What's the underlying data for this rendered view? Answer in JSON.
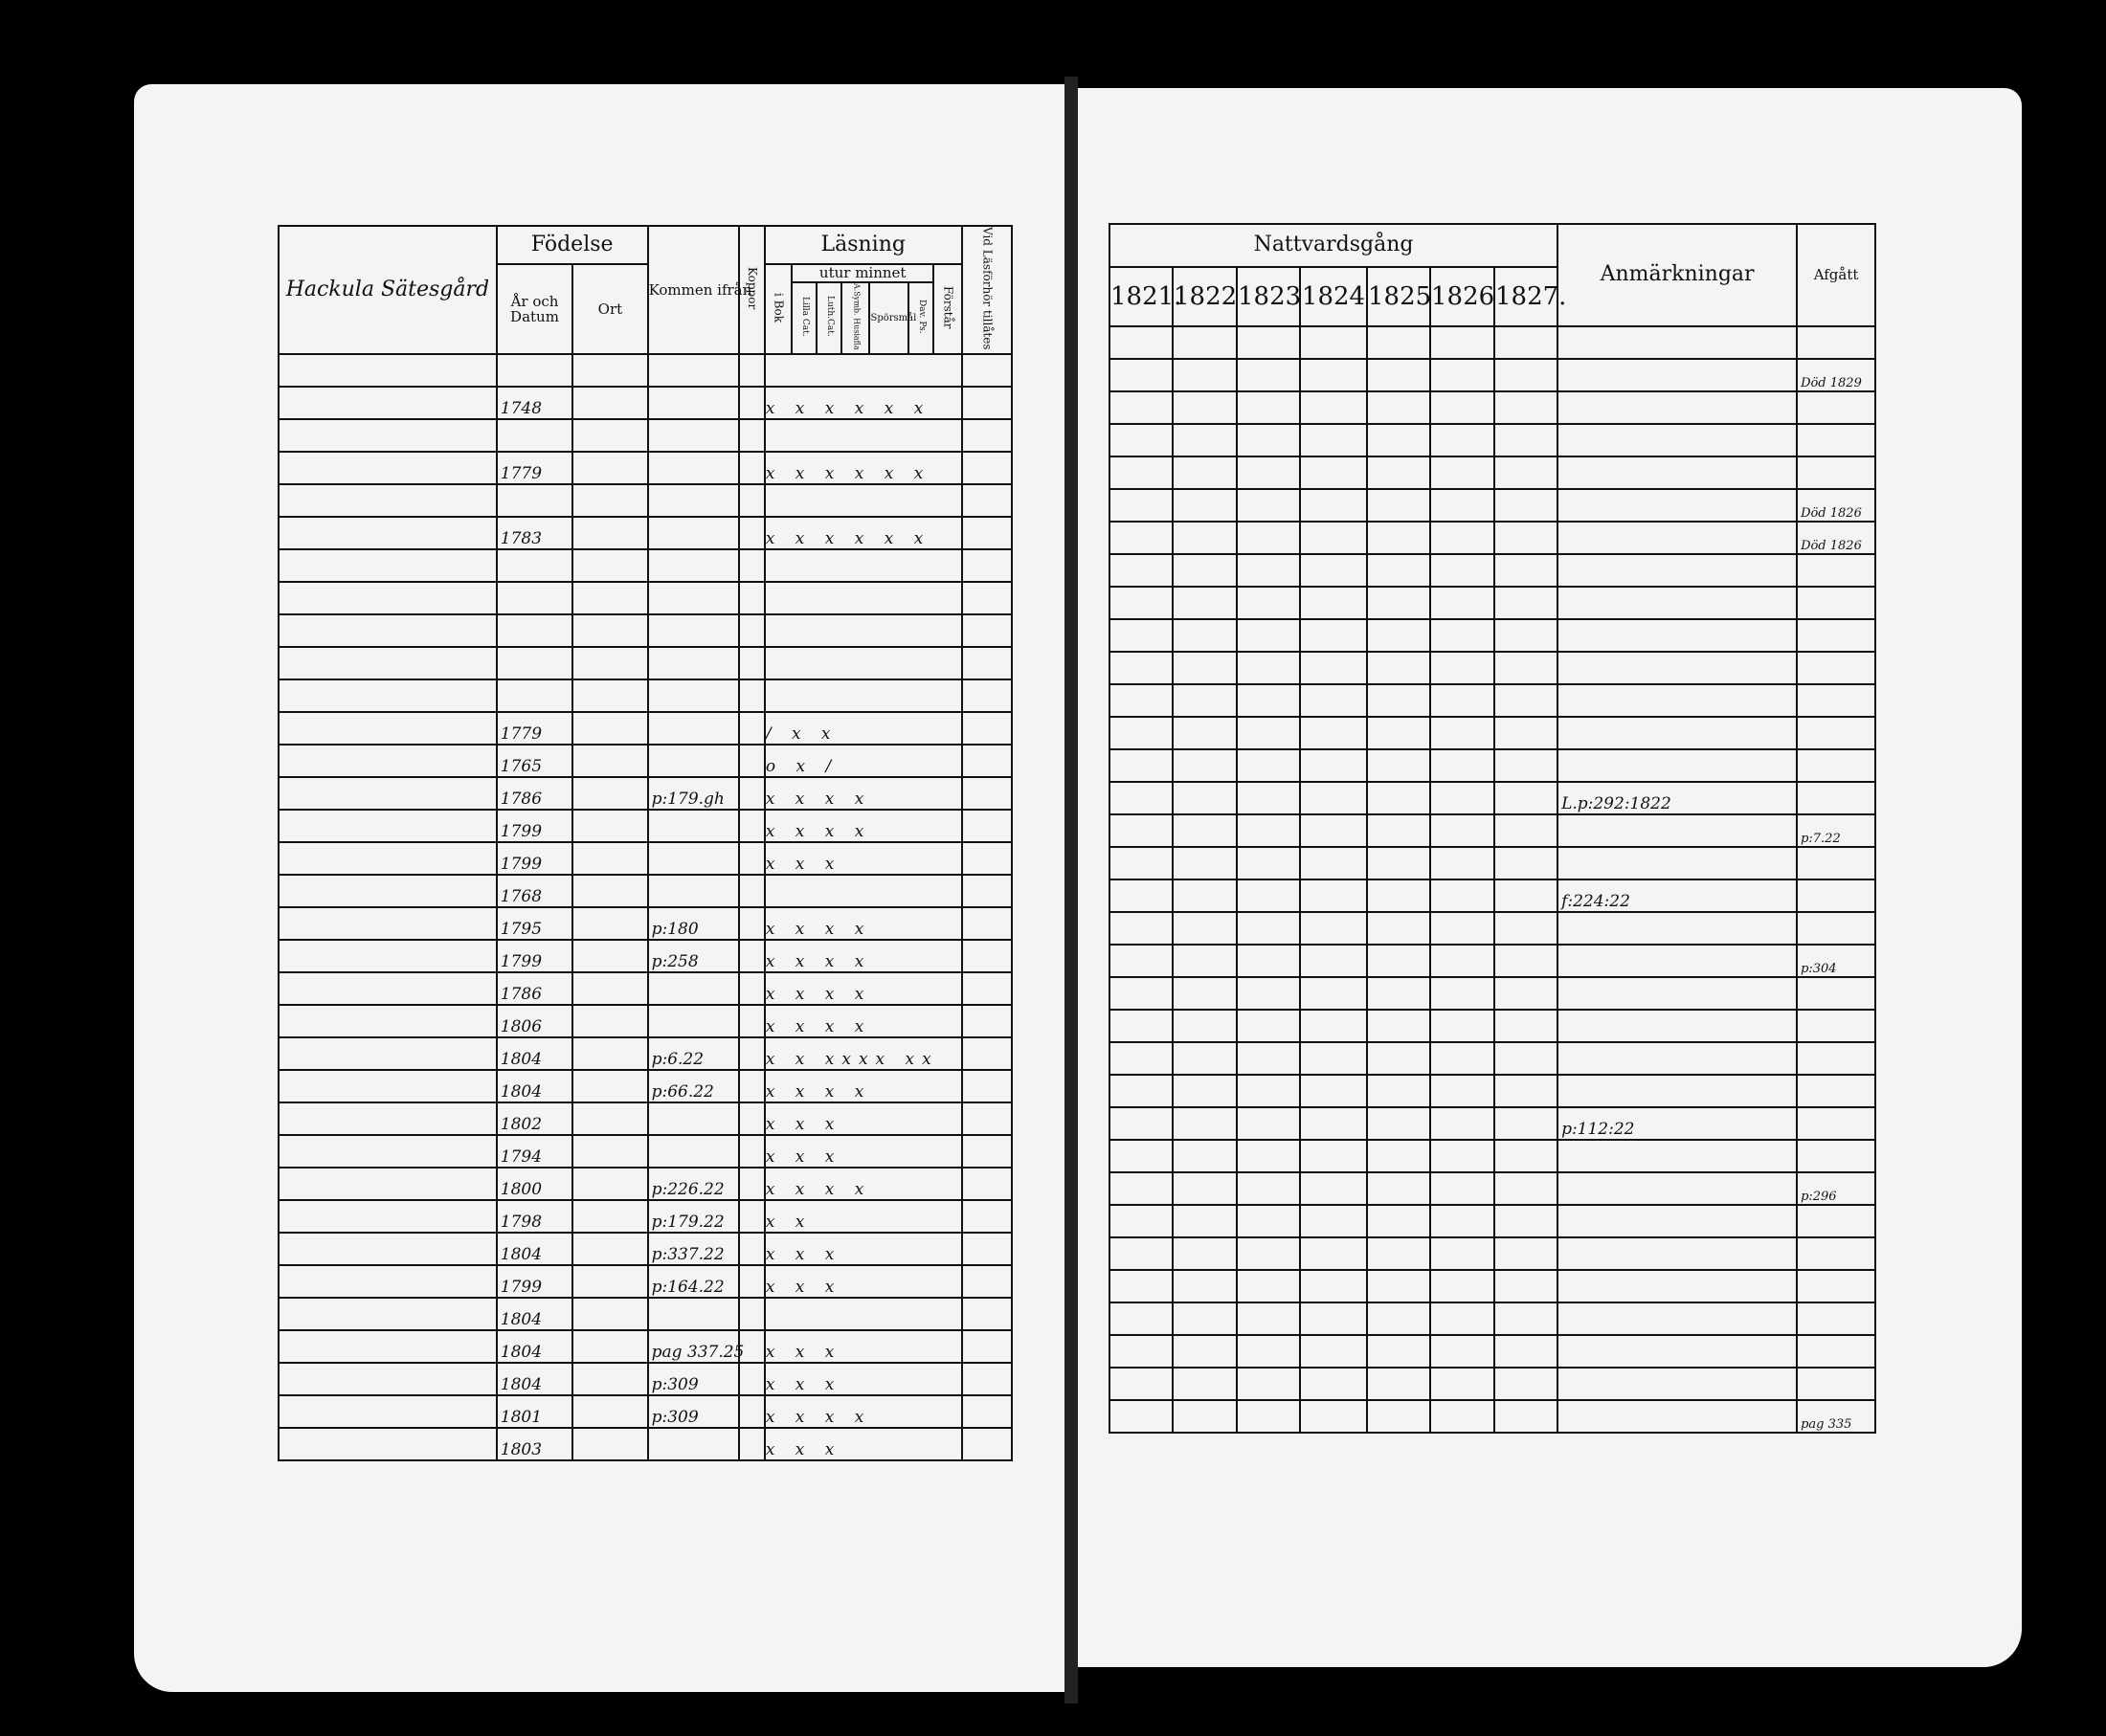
{
  "left_page": {
    "farm_name": "Hackula Sätesgård",
    "headers": {
      "birth": "Födelse",
      "birth_date": "År och Datum",
      "birth_place": "Ort",
      "came_from": "Kommen ifrån",
      "smallpox": "Koppor",
      "reading": "Läsning",
      "by_heart": "utur minnet",
      "in_book": "i Bok",
      "small_catechism": "Lilla Cat.",
      "luther_cat": "Luth.Cat.",
      "symbolic_books": "A.Symb. Husiafla",
      "questions": "Spörsmål",
      "davids_psalms": "Dav. Ps.",
      "understanding": "Förstår",
      "admitted": "Vid Läsförhör tillåtes"
    },
    "rows": [
      {
        "year": "",
        "from": "",
        "marks": ""
      },
      {
        "year": "1748",
        "from": "",
        "marks": "x x x x x x"
      },
      {
        "year": "",
        "from": "",
        "marks": ""
      },
      {
        "year": "1779",
        "from": "",
        "marks": "x x x x x x"
      },
      {
        "year": "",
        "from": "",
        "marks": ""
      },
      {
        "year": "1783",
        "from": "",
        "marks": "x x x x x x"
      },
      {
        "year": "",
        "from": "",
        "marks": ""
      },
      {
        "year": "",
        "from": "",
        "marks": ""
      },
      {
        "year": "",
        "from": "",
        "marks": ""
      },
      {
        "year": "",
        "from": "",
        "marks": ""
      },
      {
        "year": "",
        "from": "",
        "marks": ""
      },
      {
        "year": "1779",
        "from": "",
        "marks": "/ x x"
      },
      {
        "year": "1765",
        "from": "",
        "marks": "o x /"
      },
      {
        "year": "1786",
        "from": "p:179.gh",
        "marks": "x x x x"
      },
      {
        "year": "1799",
        "from": "",
        "marks": "x x x x"
      },
      {
        "year": "1799",
        "from": "",
        "marks": "x x x"
      },
      {
        "year": "1768",
        "from": "",
        "marks": ""
      },
      {
        "year": "1795",
        "from": "p:180",
        "marks": "x x x x"
      },
      {
        "year": "1799",
        "from": "p:258",
        "marks": "x x x x"
      },
      {
        "year": "1786",
        "from": "",
        "marks": "x x x x"
      },
      {
        "year": "1806",
        "from": "",
        "marks": "x x x x"
      },
      {
        "year": "1804",
        "from": "p:6.22",
        "marks": "x x xxxx xx"
      },
      {
        "year": "1804",
        "from": "p:66.22",
        "marks": "x x x x"
      },
      {
        "year": "1802",
        "from": "",
        "marks": "x x x"
      },
      {
        "year": "1794",
        "from": "",
        "marks": "x x x"
      },
      {
        "year": "1800",
        "from": "p:226.22",
        "marks": "x x x x"
      },
      {
        "year": "1798",
        "from": "p:179.22",
        "marks": "x x"
      },
      {
        "year": "1804",
        "from": "p:337.22",
        "marks": "x x x"
      },
      {
        "year": "1799",
        "from": "p:164.22",
        "marks": "x x x"
      },
      {
        "year": "1804",
        "from": "",
        "marks": ""
      },
      {
        "year": "1804",
        "from": "pag 337.25",
        "marks": "x x x"
      },
      {
        "year": "1804",
        "from": "p:309",
        "marks": "x x x"
      },
      {
        "year": "1801",
        "from": "p:309",
        "marks": "x x x x"
      },
      {
        "year": "1803",
        "from": "",
        "marks": "x x x"
      }
    ]
  },
  "right_page": {
    "headers": {
      "communion": "Nattvardsgång",
      "years": [
        "1821.",
        "1822",
        "1823",
        "1824",
        "1825",
        "1826",
        "1827."
      ],
      "remarks": "Anmärkningar",
      "departed": "Afgått"
    },
    "rows": [
      {
        "remarks": "",
        "departed": ""
      },
      {
        "remarks": "",
        "departed": "Död 1829"
      },
      {
        "remarks": "",
        "departed": ""
      },
      {
        "remarks": "",
        "departed": ""
      },
      {
        "remarks": "",
        "departed": ""
      },
      {
        "remarks": "",
        "departed": "Död 1826"
      },
      {
        "remarks": "",
        "departed": "Död 1826"
      },
      {
        "remarks": "",
        "departed": ""
      },
      {
        "remarks": "",
        "departed": ""
      },
      {
        "remarks": "",
        "departed": ""
      },
      {
        "remarks": "",
        "departed": ""
      },
      {
        "remarks": "",
        "departed": ""
      },
      {
        "remarks": "",
        "departed": ""
      },
      {
        "remarks": "",
        "departed": ""
      },
      {
        "remarks": "L.p:292:1822",
        "departed": ""
      },
      {
        "remarks": "",
        "departed": "p:7.22"
      },
      {
        "remarks": "",
        "departed": ""
      },
      {
        "remarks": "f:224:22",
        "departed": ""
      },
      {
        "remarks": "",
        "departed": ""
      },
      {
        "remarks": "",
        "departed": "p:304"
      },
      {
        "remarks": "",
        "departed": ""
      },
      {
        "remarks": "",
        "departed": ""
      },
      {
        "remarks": "",
        "departed": ""
      },
      {
        "remarks": "",
        "departed": ""
      },
      {
        "remarks": "p:112:22",
        "departed": ""
      },
      {
        "remarks": "",
        "departed": ""
      },
      {
        "remarks": "",
        "departed": "p:296"
      },
      {
        "remarks": "",
        "departed": ""
      },
      {
        "remarks": "",
        "departed": ""
      },
      {
        "remarks": "",
        "departed": ""
      },
      {
        "remarks": "",
        "departed": ""
      },
      {
        "remarks": "",
        "departed": ""
      },
      {
        "remarks": "",
        "departed": ""
      },
      {
        "remarks": "",
        "departed": "pag 335"
      }
    ]
  }
}
